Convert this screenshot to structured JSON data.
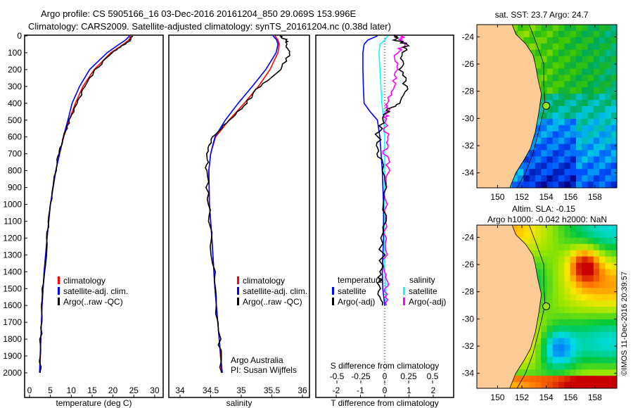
{
  "title": {
    "line1": "Argo profile: CS 5905166_16 03-Dec-2016 20161204_850 29.069S 153.996E",
    "line2": "Climatology: CARS2009. Satellite-adjusted climatology: synTS_20161204.nc (0.38d later)"
  },
  "colors": {
    "climatology": "#ff0000",
    "satellite": "#0000ff",
    "argo": "#000000",
    "sal_satellite": "#00ffff",
    "sal_argo": "#ff00ff"
  },
  "chart_data": [
    {
      "type": "line",
      "name": "temperature-profile",
      "xlabel": "temperature (deg C)",
      "ylabel": "",
      "xlim": [
        -1,
        31
      ],
      "ylim": [
        2000,
        0
      ],
      "xticks": [
        0,
        5,
        10,
        15,
        20,
        25,
        30
      ],
      "yticks": [
        0,
        100,
        200,
        300,
        400,
        500,
        600,
        700,
        800,
        900,
        1000,
        1100,
        1200,
        1300,
        1400,
        1500,
        1600,
        1700,
        1800,
        1900,
        2000
      ],
      "legend": [
        "climatology",
        "satellite-adj. clim.",
        "Argo(..raw -QC)"
      ],
      "depth": [
        0,
        25,
        50,
        100,
        200,
        300,
        400,
        500,
        600,
        700,
        800,
        1000,
        1200,
        1400,
        1600,
        1800,
        2000
      ],
      "series": [
        {
          "name": "climatology",
          "values": [
            24.3,
            23.8,
            22.5,
            19.5,
            15.5,
            12.8,
            11.0,
            9.5,
            8.2,
            7.2,
            6.3,
            5.0,
            4.2,
            3.5,
            3.0,
            2.7,
            2.5
          ]
        },
        {
          "name": "satellite-adj. clim.",
          "values": [
            24.0,
            23.0,
            21.5,
            18.6,
            14.4,
            12.0,
            10.2,
            9.2,
            8.1,
            7.2,
            6.3,
            5.0,
            4.2,
            3.5,
            3.0,
            2.7,
            2.4
          ]
        },
        {
          "name": "Argo(..raw -QC)",
          "values": [
            24.7,
            24.2,
            22.8,
            19.8,
            15.8,
            13.2,
            11.4,
            9.6,
            8.1,
            7.1,
            6.2,
            5.0,
            4.2,
            3.5,
            3.0,
            2.7,
            2.5
          ]
        }
      ]
    },
    {
      "type": "line",
      "name": "salinity-profile",
      "xlabel": "salinity",
      "xlim": [
        33.9,
        36.05
      ],
      "ylim": [
        2000,
        0
      ],
      "xticks": [
        34,
        34.5,
        35,
        35.5,
        36
      ],
      "legend": [
        "climatology",
        "satellite-adj. clim.",
        "Argo(..raw -QC)"
      ],
      "annotation": [
        "Argo Australia",
        "PI: Susan Wijffels"
      ],
      "depth": [
        0,
        25,
        50,
        100,
        200,
        300,
        400,
        500,
        600,
        700,
        800,
        1000,
        1200,
        1500,
        1800,
        2000
      ],
      "series": [
        {
          "name": "climatology",
          "values": [
            35.55,
            35.6,
            35.62,
            35.6,
            35.47,
            35.28,
            35.05,
            34.8,
            34.58,
            34.5,
            34.47,
            34.48,
            34.52,
            34.57,
            34.64,
            34.68
          ]
        },
        {
          "name": "satellite-adj. clim.",
          "values": [
            35.52,
            35.58,
            35.6,
            35.57,
            35.4,
            35.18,
            34.95,
            34.74,
            34.57,
            34.5,
            34.47,
            34.48,
            34.52,
            34.57,
            34.64,
            34.69
          ]
        },
        {
          "name": "Argo(..raw -QC)",
          "values": [
            35.62,
            35.75,
            35.72,
            35.8,
            35.65,
            35.3,
            35.08,
            34.8,
            34.52,
            34.45,
            34.43,
            34.47,
            34.51,
            34.57,
            34.64,
            34.68
          ]
        }
      ]
    },
    {
      "type": "line",
      "name": "difference-profile",
      "xlabel": "T difference from climatology",
      "x2label": "S difference from climatology",
      "xlim": [
        -2.8,
        2.9
      ],
      "x2lim": [
        -0.7,
        0.725
      ],
      "xticks": [
        -2,
        -1,
        0,
        1,
        2
      ],
      "x2ticks": [
        -0.5,
        -0.25,
        0,
        0.25,
        0.5
      ],
      "x2ticklabels": [
        "-0.5",
        "-0.25",
        "0",
        "0.25",
        "0.5"
      ],
      "legend_titles": [
        "temperature",
        "salinity"
      ],
      "legend": [
        "satellite",
        "Argo(-adj)",
        "satellite",
        "Argo(-adj)"
      ],
      "depth": [
        0,
        25,
        50,
        100,
        200,
        300,
        400,
        450,
        500,
        600,
        700,
        800,
        1000,
        1200,
        1400,
        1500,
        1600
      ],
      "series": [
        {
          "name": "T satellite",
          "values": [
            -0.3,
            -0.7,
            -0.85,
            -0.9,
            -0.9,
            -0.88,
            -0.85,
            -0.6,
            -0.3,
            -0.2,
            -0.15,
            -0.1,
            -0.05,
            -0.05,
            -0.1,
            -0.08,
            0
          ]
        },
        {
          "name": "T Argo(-adj)",
          "values": [
            0.4,
            0.5,
            0.9,
            0.8,
            0.6,
            0.9,
            0.5,
            0.1,
            -0.1,
            -0.3,
            -0.2,
            -0.1,
            0.05,
            -0.1,
            -0.15,
            -0.2,
            -0.1
          ]
        },
        {
          "name": "S satellite",
          "values": [
            0.03,
            0.0,
            -0.05,
            -0.06,
            -0.05,
            -0.04,
            -0.03,
            -0.02,
            -0.01,
            0.0,
            0.0,
            0.0,
            0.0,
            0.0,
            0.0,
            0.01,
            0.01
          ]
        },
        {
          "name": "S Argo(-adj)",
          "values": [
            0.2,
            0.15,
            0.22,
            0.12,
            0.12,
            0.1,
            0.04,
            0.02,
            0.01,
            0.02,
            0.0,
            0.05,
            0.0,
            0.0,
            0.0,
            0.02,
            0.02
          ]
        }
      ]
    },
    {
      "type": "heatmap",
      "name": "sst-map",
      "title": "sat. SST: 23.7 Argo: 24.7",
      "xlim": [
        148.3,
        159.8
      ],
      "ylim": [
        -35.1,
        -23.1
      ],
      "xticks": [
        150,
        152,
        154,
        156,
        158
      ],
      "yticks": [
        -24,
        -26,
        -28,
        -30,
        -32,
        -34
      ],
      "marker": {
        "lon": 153.996,
        "lat": -29.069
      }
    },
    {
      "type": "heatmap",
      "name": "sla-map",
      "title": [
        "Altim. SLA: -0.15",
        "Argo h1000: -0.042 h2000: NaN"
      ],
      "xlim": [
        148.3,
        159.8
      ],
      "ylim": [
        -35.1,
        -23.1
      ],
      "xticks": [
        150,
        152,
        154,
        156,
        158
      ],
      "yticks": [
        -24,
        -26,
        -28,
        -30,
        -32,
        -34
      ],
      "marker": {
        "lon": 153.996,
        "lat": -29.069
      },
      "side_label": "©IMOS 11-Dec-2016 20:39:57"
    }
  ]
}
